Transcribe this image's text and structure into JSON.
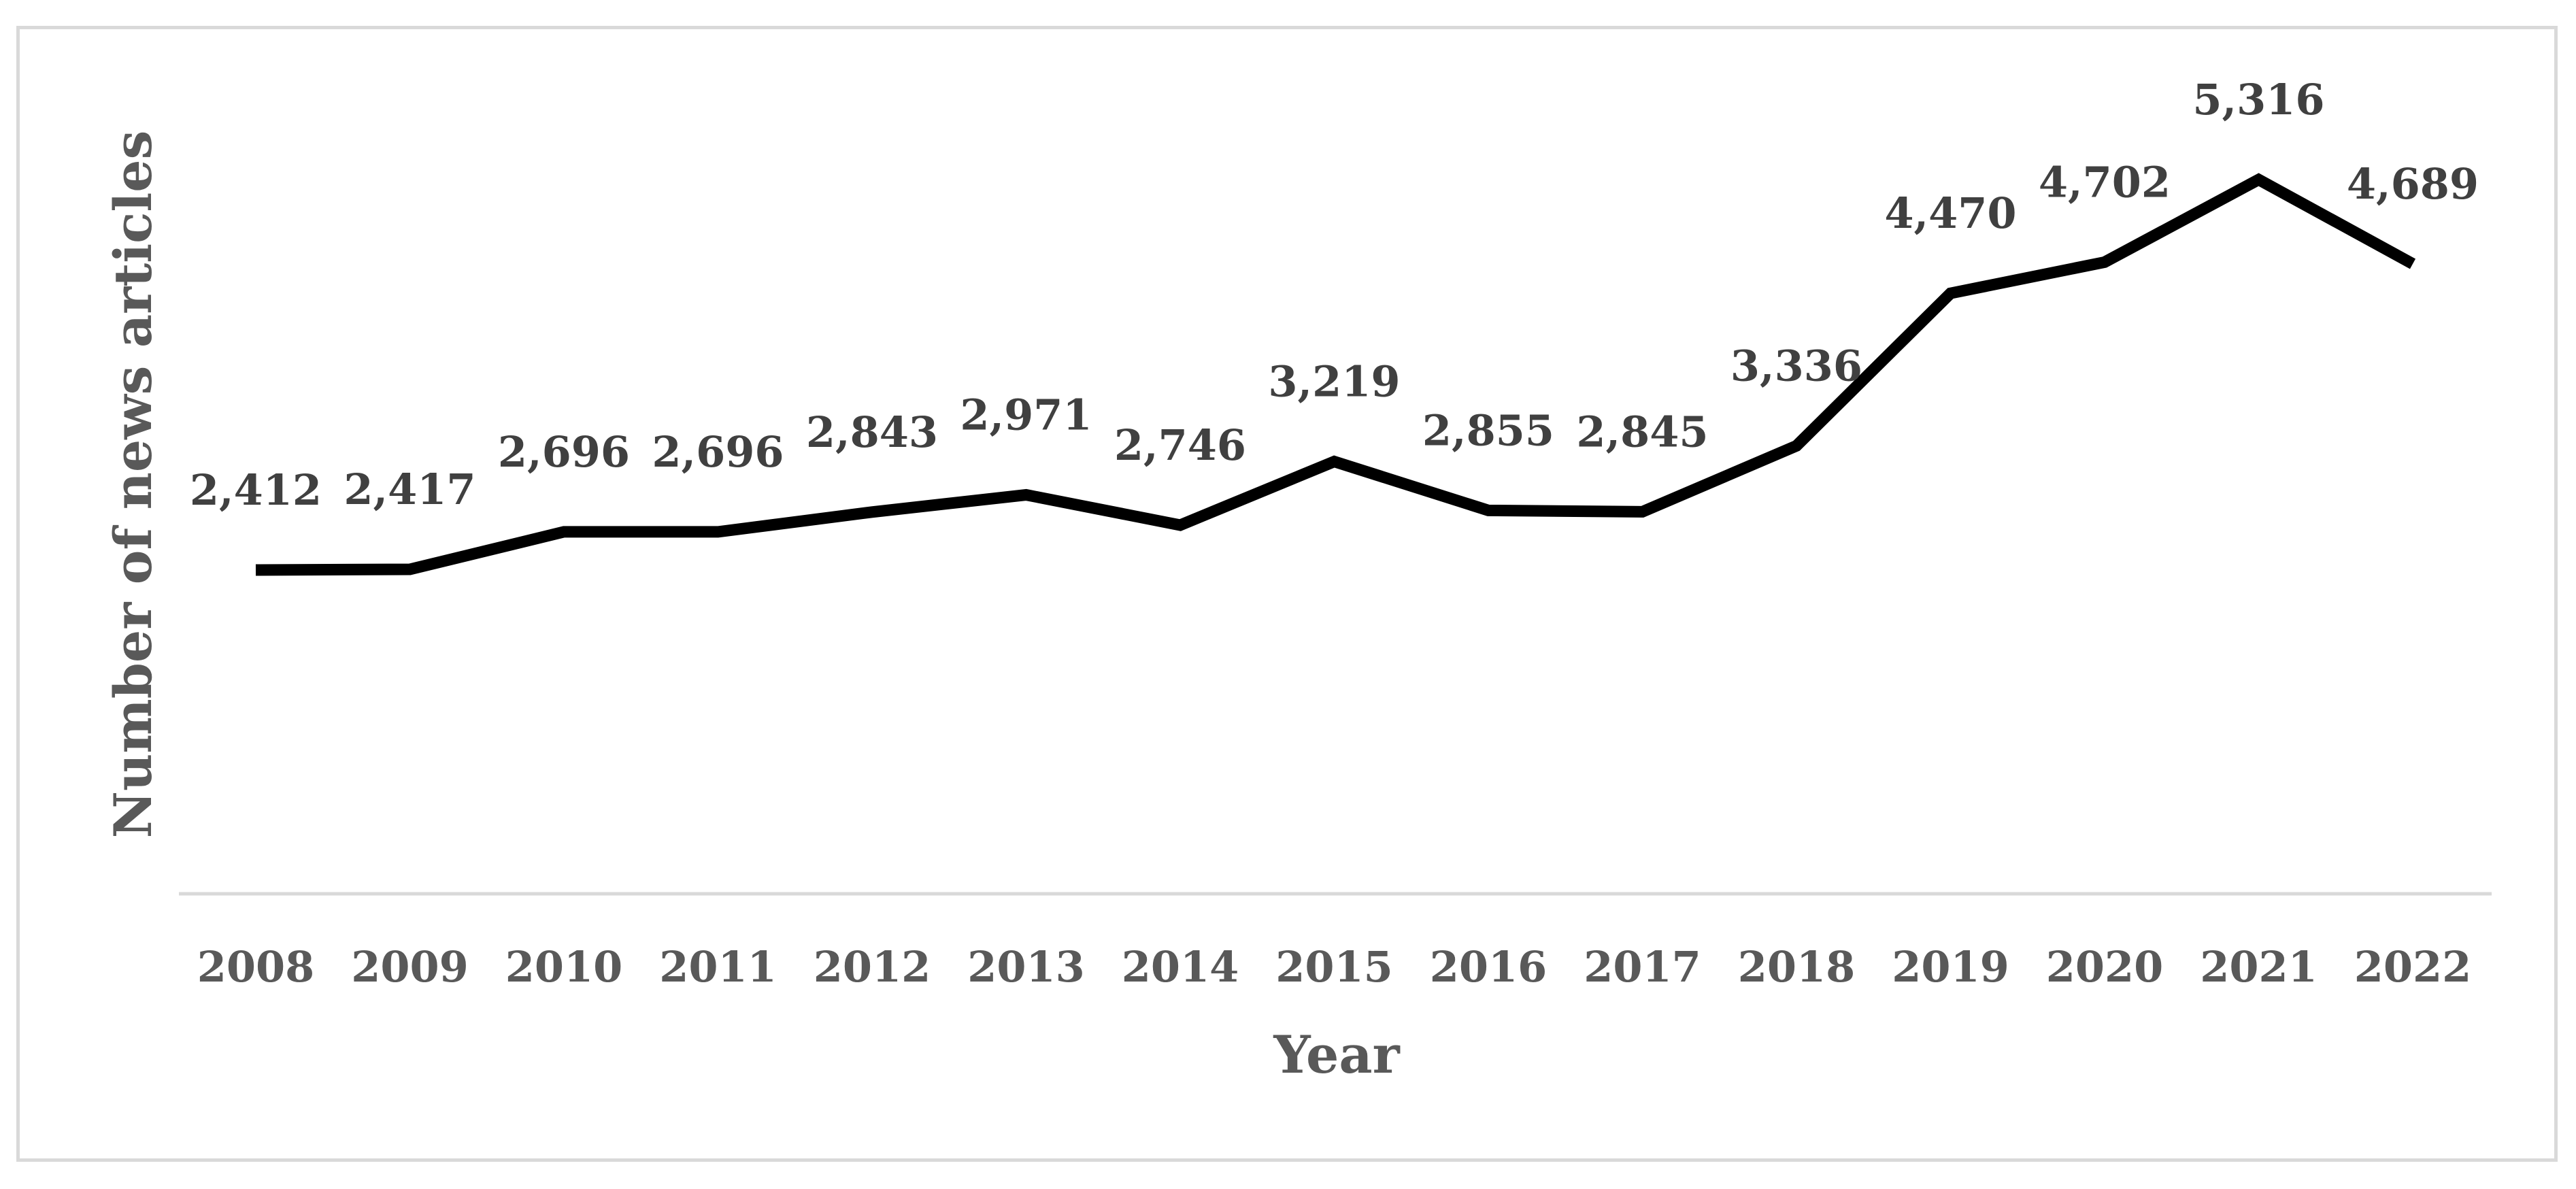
{
  "chart_data": {
    "type": "line",
    "title": "",
    "xlabel": "Year",
    "ylabel": "Number of news articles",
    "categories": [
      "2008",
      "2009",
      "2010",
      "2011",
      "2012",
      "2013",
      "2014",
      "2015",
      "2016",
      "2017",
      "2018",
      "2019",
      "2020",
      "2021",
      "2022"
    ],
    "series": [
      {
        "values": [
          2412,
          2417,
          2696,
          2696,
          2843,
          2971,
          2746,
          3219,
          2855,
          2845,
          3336,
          4470,
          4702,
          5316,
          4689
        ],
        "labels": [
          "2,412",
          "2,417",
          "2,696",
          "2,696",
          "2,843",
          "2,971",
          "2,746",
          "3,219",
          "2,855",
          "2,845",
          "3,336",
          "4,470",
          "4,702",
          "5,316",
          "4,689"
        ],
        "color": "#000000"
      }
    ],
    "ylim": [
      0,
      6000
    ],
    "grid": false,
    "legend": "none",
    "line_color": "#000000",
    "axis_color": "#d9d9d9",
    "label_color": "#595959"
  }
}
